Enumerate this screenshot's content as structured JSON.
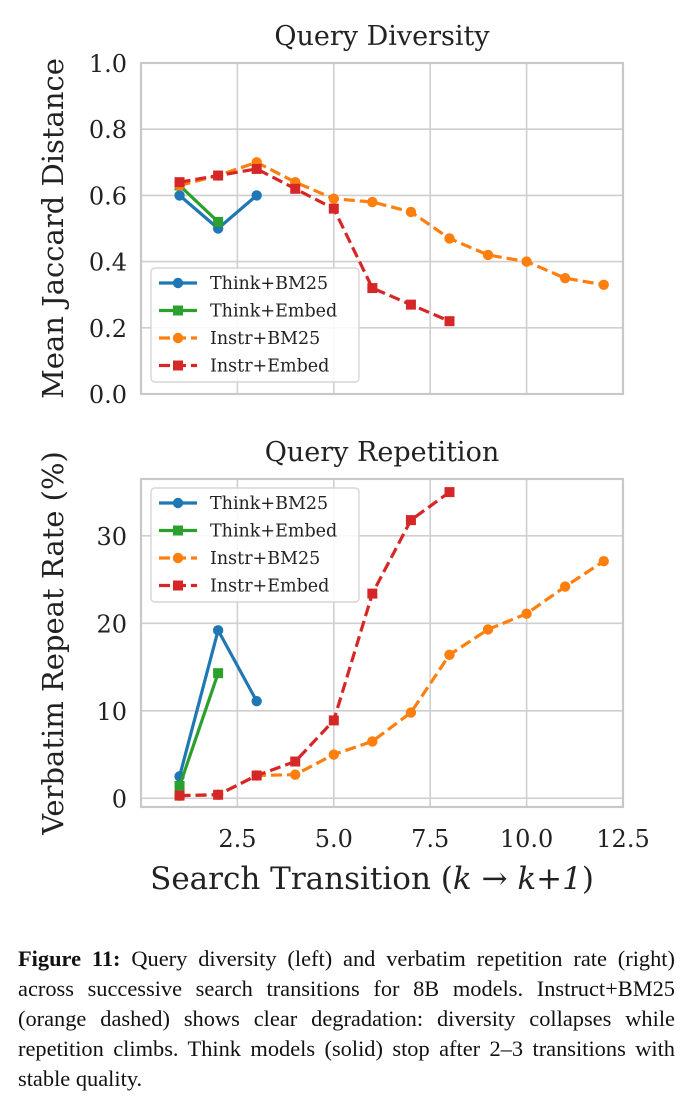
{
  "chart_data": [
    {
      "type": "line",
      "title": "Query Diversity",
      "xlabel": "",
      "ylabel": "Mean Jaccard Distance",
      "xlim": [
        0,
        12.5
      ],
      "ylim": [
        0.0,
        1.0
      ],
      "yticks": [
        0.0,
        0.2,
        0.4,
        0.6,
        0.8,
        1.0
      ],
      "ytick_labels": [
        "0.0",
        "0.2",
        "0.4",
        "0.6",
        "0.8",
        "1.0"
      ],
      "xticks": [
        2.5,
        5.0,
        7.5,
        10.0,
        12.5
      ],
      "grid": true,
      "legend_position": "bottom-left",
      "series": [
        {
          "name": "Think+BM25",
          "color": "#1f77b4",
          "style": "solid",
          "marker": "circle",
          "x": [
            1,
            2,
            3
          ],
          "y": [
            0.6,
            0.5,
            0.6
          ]
        },
        {
          "name": "Think+Embed",
          "color": "#2ca02c",
          "style": "solid",
          "marker": "square",
          "x": [
            1,
            2
          ],
          "y": [
            0.63,
            0.52
          ]
        },
        {
          "name": "Instr+BM25",
          "color": "#ff7f0e",
          "style": "dashed",
          "marker": "circle",
          "x": [
            1,
            2,
            3,
            4,
            5,
            6,
            7,
            8,
            9,
            10,
            11,
            12
          ],
          "y": [
            0.63,
            0.66,
            0.7,
            0.64,
            0.59,
            0.58,
            0.55,
            0.47,
            0.42,
            0.4,
            0.35,
            0.33
          ]
        },
        {
          "name": "Instr+Embed",
          "color": "#d62728",
          "style": "dashed",
          "marker": "square",
          "x": [
            1,
            2,
            3,
            4,
            5,
            6,
            7,
            8
          ],
          "y": [
            0.64,
            0.66,
            0.68,
            0.62,
            0.56,
            0.32,
            0.27,
            0.22
          ]
        }
      ]
    },
    {
      "type": "line",
      "title": "Query Repetition",
      "xlabel": "Search Transition (k → k+1)",
      "ylabel": "Verbatim Repeat Rate (%)",
      "xlim": [
        0,
        12.5
      ],
      "ylim": [
        -1,
        36.5
      ],
      "yticks": [
        0,
        10,
        20,
        30
      ],
      "ytick_labels": [
        "0",
        "10",
        "20",
        "30"
      ],
      "xticks": [
        2.5,
        5.0,
        7.5,
        10.0,
        12.5
      ],
      "xtick_labels": [
        "2.5",
        "5.0",
        "7.5",
        "10.0",
        "12.5"
      ],
      "grid": true,
      "legend_position": "top-left",
      "series": [
        {
          "name": "Think+BM25",
          "color": "#1f77b4",
          "style": "solid",
          "marker": "circle",
          "x": [
            1,
            2,
            3
          ],
          "y": [
            2.5,
            19.2,
            11.1
          ]
        },
        {
          "name": "Think+Embed",
          "color": "#2ca02c",
          "style": "solid",
          "marker": "square",
          "x": [
            1,
            2
          ],
          "y": [
            1.4,
            14.3
          ]
        },
        {
          "name": "Instr+BM25",
          "color": "#ff7f0e",
          "style": "dashed",
          "marker": "circle",
          "x": [
            1,
            2,
            3,
            4,
            5,
            6,
            7,
            8,
            9,
            10,
            11,
            12
          ],
          "y": [
            0.3,
            0.4,
            2.6,
            2.7,
            5.0,
            6.5,
            9.8,
            16.4,
            19.3,
            21.1,
            24.2,
            27.1
          ]
        },
        {
          "name": "Instr+Embed",
          "color": "#d62728",
          "style": "dashed",
          "marker": "square",
          "x": [
            1,
            2,
            3,
            4,
            5,
            6,
            7,
            8
          ],
          "y": [
            0.3,
            0.4,
            2.6,
            4.2,
            8.9,
            23.4,
            31.8,
            35.0
          ]
        }
      ]
    }
  ],
  "caption": {
    "label": "Figure 11:",
    "text": " Query diversity (left) and verbatim repetition rate (right) across successive search transitions for 8B models. Instruct+BM25 (orange dashed) shows clear degradation: diversity collapses while repetition climbs. Think models (solid) stop after 2–3 transitions with stable quality."
  }
}
